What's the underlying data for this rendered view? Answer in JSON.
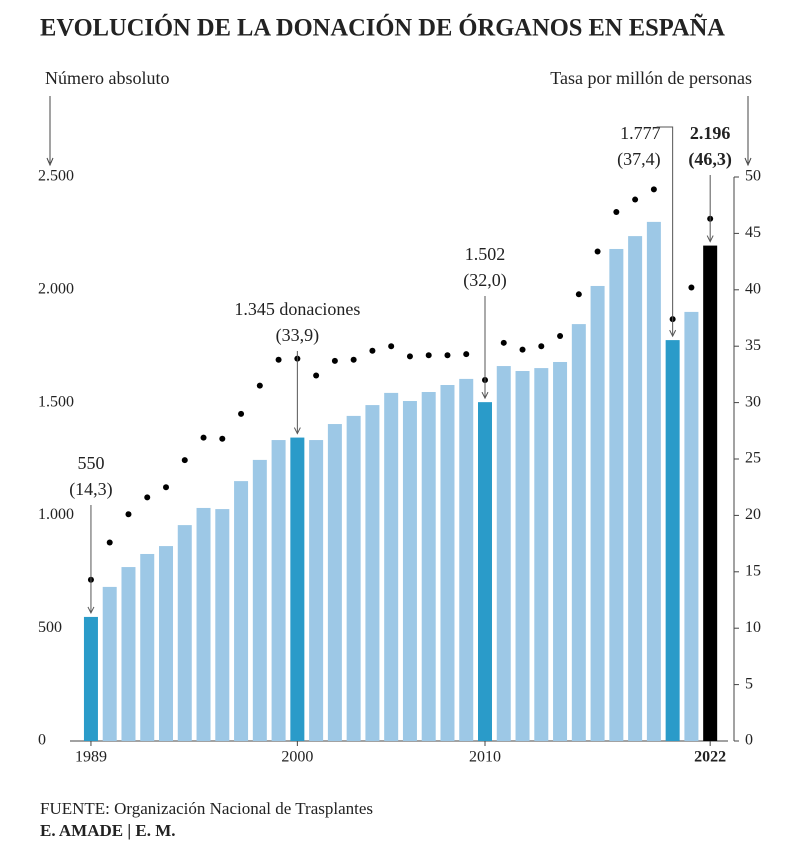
{
  "chart_data": {
    "type": "bar",
    "title": "EVOLUCIÓN DE LA DONACIÓN DE ÓRGANOS EN ESPAÑA",
    "y_label": "Número absoluto",
    "y2_label": "Tasa por millón de personas",
    "x": [
      1989,
      1990,
      1991,
      1992,
      1993,
      1994,
      1995,
      1996,
      1997,
      1998,
      1999,
      2000,
      2001,
      2002,
      2003,
      2004,
      2005,
      2006,
      2007,
      2008,
      2009,
      2010,
      2011,
      2012,
      2013,
      2014,
      2015,
      2016,
      2017,
      2018,
      2019,
      2020,
      2021,
      2022
    ],
    "xlim": [
      1988.15,
      2022.95
    ],
    "xticks": [
      1989,
      2000,
      2010,
      {
        "value": 2022,
        "label": "2022"
      }
    ],
    "ylim": [
      0,
      2500
    ],
    "yticks": [
      0,
      500,
      {
        "value": 1000,
        "label": "1.000"
      },
      {
        "value": 1500,
        "label": "1.500"
      },
      {
        "value": 2000,
        "label": "2.000"
      },
      {
        "value": 2500,
        "label": "2.500"
      }
    ],
    "y2lim": [
      0,
      50
    ],
    "y2ticks": [
      0,
      5,
      10,
      15,
      20,
      25,
      30,
      35,
      40,
      45,
      50
    ],
    "series": [
      {
        "values": [
          550,
          683,
          771,
          829,
          864,
          957,
          1033,
          1028,
          1152,
          1246,
          1334,
          1345,
          1334,
          1405,
          1441,
          1489,
          1543,
          1507,
          1547,
          1578,
          1605,
          1502,
          1662,
          1640,
          1653,
          1680,
          1848,
          2017,
          2181,
          2238,
          2301,
          1777,
          1902,
          2196
        ],
        "colors": [
          "#2a9bc9",
          "#9dc8e6",
          "#9dc8e6",
          "#9dc8e6",
          "#9dc8e6",
          "#9dc8e6",
          "#9dc8e6",
          "#9dc8e6",
          "#9dc8e6",
          "#9dc8e6",
          "#9dc8e6",
          "#2a9bc9",
          "#9dc8e6",
          "#9dc8e6",
          "#9dc8e6",
          "#9dc8e6",
          "#9dc8e6",
          "#9dc8e6",
          "#9dc8e6",
          "#9dc8e6",
          "#9dc8e6",
          "#2a9bc9",
          "#9dc8e6",
          "#9dc8e6",
          "#9dc8e6",
          "#9dc8e6",
          "#9dc8e6",
          "#9dc8e6",
          "#9dc8e6",
          "#9dc8e6",
          "#9dc8e6",
          "#2a9bc9",
          "#9dc8e6",
          "#000000"
        ]
      },
      {
        "axis": "y2",
        "color": "#000000",
        "values": [
          14.3,
          17.6,
          20.1,
          21.6,
          22.5,
          24.9,
          26.9,
          26.8,
          29.0,
          31.5,
          33.8,
          33.9,
          32.4,
          33.7,
          33.8,
          34.6,
          35.0,
          34.1,
          34.2,
          34.2,
          34.3,
          32.0,
          35.3,
          34.7,
          35.0,
          35.9,
          39.6,
          43.4,
          46.9,
          48.0,
          48.9,
          37.4,
          40.2,
          46.3
        ]
      }
    ],
    "annotations": [
      {
        "x": 1989,
        "lines": [
          "550",
          "(14,3)"
        ]
      },
      {
        "x": 2000,
        "lines": [
          "1.345 donaciones",
          "(33,9)"
        ]
      },
      {
        "x": 2010,
        "lines": [
          "1.502",
          "(32,0)"
        ]
      },
      {
        "x": 2020,
        "lines": [
          "1.777",
          "(37,4)"
        ]
      },
      {
        "x": 2022,
        "lines": [
          "2.196",
          "(46,3)"
        ],
        "bold": true
      }
    ],
    "source": "FUENTE: Organización Nacional de Trasplantes",
    "credit": "E. AMADE | E. M."
  }
}
